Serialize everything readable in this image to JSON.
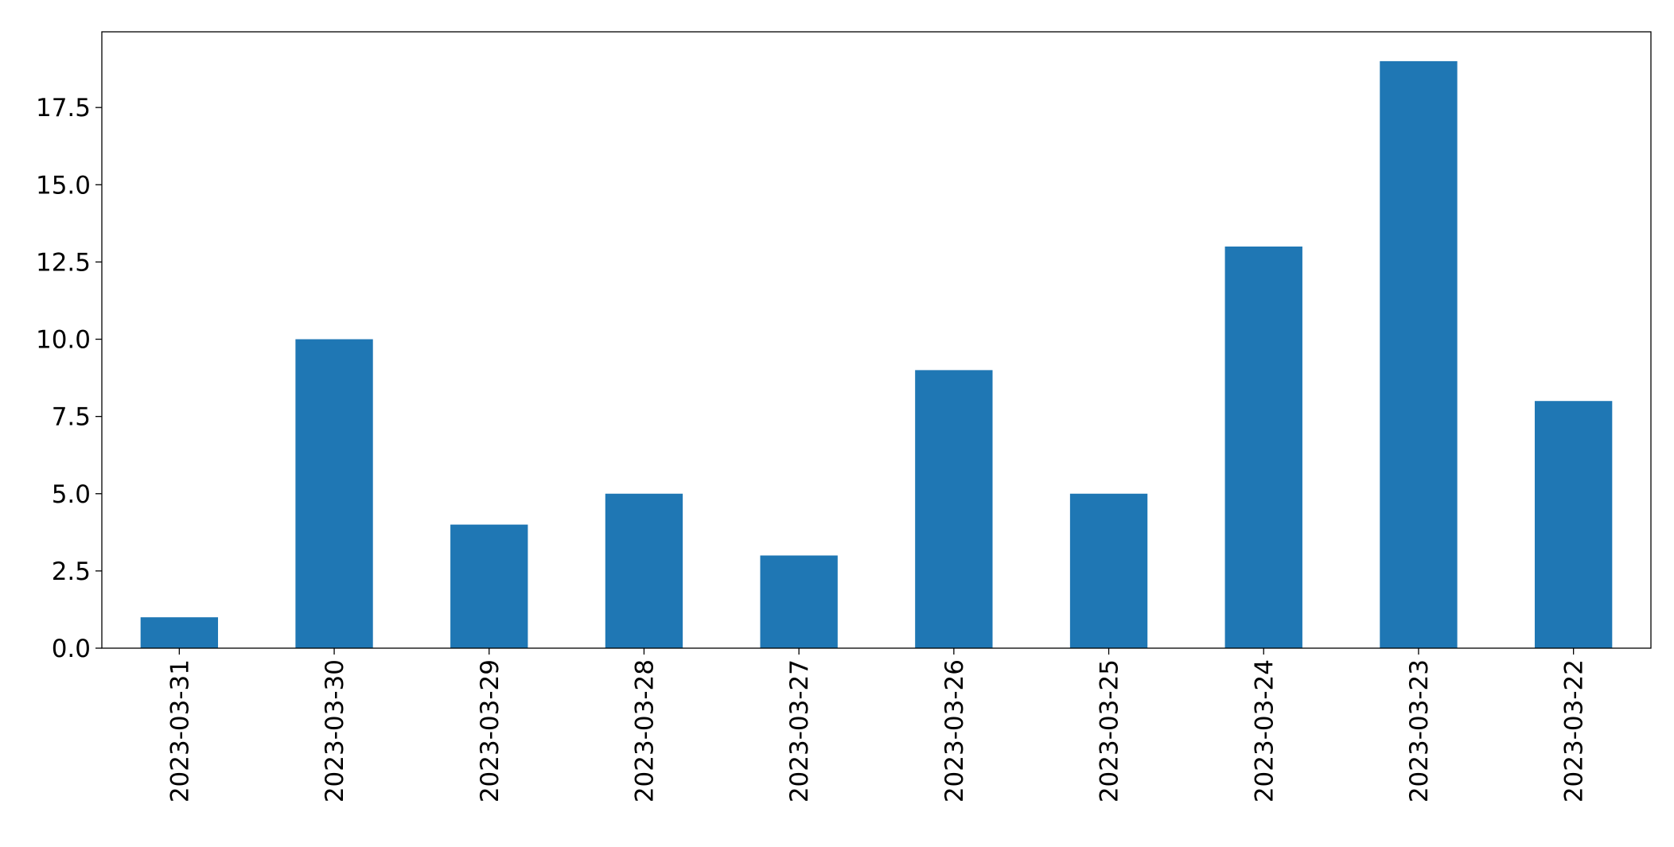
{
  "chart_data": {
    "type": "bar",
    "title": "",
    "xlabel": "",
    "ylabel": "",
    "categories": [
      "2023-03-31",
      "2023-03-30",
      "2023-03-29",
      "2023-03-28",
      "2023-03-27",
      "2023-03-26",
      "2023-03-25",
      "2023-03-24",
      "2023-03-23",
      "2023-03-22"
    ],
    "values": [
      1,
      10,
      4,
      5,
      3,
      9,
      5,
      13,
      19,
      8
    ],
    "ylim": [
      0,
      19.95
    ],
    "yticks": [
      0,
      2.5,
      5,
      7.5,
      10,
      12.5,
      15,
      17.5
    ],
    "ytick_labels": [
      "0.0",
      "2.5",
      "5.0",
      "7.5",
      "10.0",
      "12.5",
      "15.0",
      "17.5"
    ],
    "bar_color": "#1f77b4",
    "grid": false,
    "legend": "none"
  }
}
